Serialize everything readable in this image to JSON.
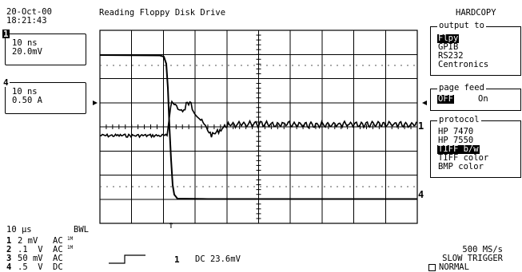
{
  "header": {
    "date": "20-Oct-00",
    "time": "18:21:43",
    "title": "Reading Floppy Disk Drive",
    "mode": "HARDCOPY"
  },
  "traces": [
    {
      "number": "1",
      "time_div": "10 ns",
      "volts_div": "20.0mV"
    },
    {
      "number": "4",
      "time_div": "10 ns",
      "volts_div": "0.50 A"
    }
  ],
  "menus": {
    "output_to": {
      "title": "output to",
      "options": [
        "Flpy",
        "GPIB",
        "RS232",
        "Centronics"
      ],
      "selected": "Flpy"
    },
    "page_feed": {
      "title": "page feed",
      "options": [
        "OFF",
        "On"
      ],
      "selected": "OFF"
    },
    "protocol": {
      "title": "protocol",
      "options": [
        "HP 7470",
        "HP 7550",
        "TIFF b/w",
        "TIFF color",
        "BMP color"
      ],
      "selected": "TIFF b/w"
    }
  },
  "markers": {
    "channel_1": "1",
    "channel_4": "4",
    "trigger_arrow": "↑"
  },
  "bottom": {
    "timebase": "10 μs",
    "bwl": "BWL",
    "channels": [
      {
        "num": "1",
        "volts": "2 mV",
        "coupling": "AC",
        "imp": "1M"
      },
      {
        "num": "2",
        "volts": ".1  V",
        "coupling": "AC",
        "imp": "1M"
      },
      {
        "num": "3",
        "volts": "50 mV",
        "coupling": "AC",
        "imp": ""
      },
      {
        "num": "4",
        "volts": ".5  V",
        "coupling": "DC",
        "imp": ""
      }
    ],
    "trigger_channel": "1",
    "trigger_info": "DC 23.6mV",
    "sample_rate": "500 MS/s",
    "trigger_mode": "SLOW TRIGGER",
    "normal": "NORMAL"
  }
}
